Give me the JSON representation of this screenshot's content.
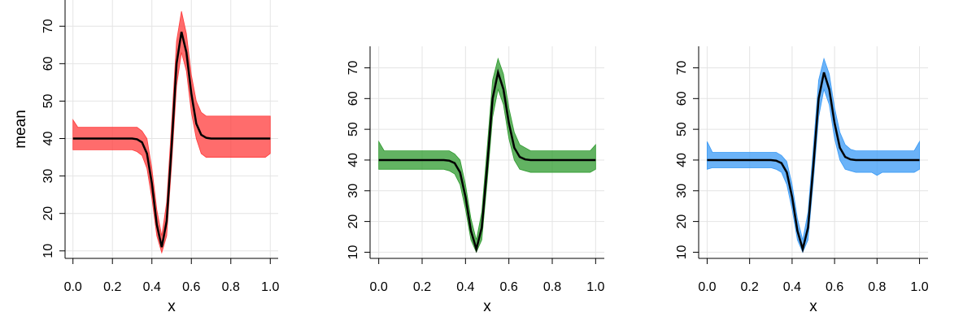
{
  "chart_data": [
    {
      "type": "line",
      "xlabel": "x",
      "ylabel": "mean",
      "x": [
        0,
        0.025,
        0.05,
        0.075,
        0.1,
        0.125,
        0.15,
        0.175,
        0.2,
        0.225,
        0.25,
        0.275,
        0.3,
        0.325,
        0.35,
        0.375,
        0.4,
        0.425,
        0.45,
        0.475,
        0.5,
        0.525,
        0.55,
        0.575,
        0.6,
        0.625,
        0.65,
        0.675,
        0.7,
        0.725,
        0.75,
        0.775,
        0.8,
        0.825,
        0.85,
        0.875,
        0.9,
        0.925,
        0.95,
        0.975,
        1
      ],
      "series": [
        {
          "color": "#000000",
          "values": [
            40,
            40,
            40,
            40,
            40,
            40,
            40,
            40,
            40,
            40,
            40,
            40,
            40,
            39.8,
            39,
            36,
            28,
            17,
            11,
            18,
            38,
            60,
            68.5,
            63,
            52,
            44,
            41,
            40.2,
            40,
            40,
            40,
            40,
            40,
            40,
            40,
            40,
            40,
            40,
            40,
            40,
            40
          ]
        }
      ],
      "band": {
        "color": "#ff3b3b",
        "upper": [
          45,
          43,
          43,
          43,
          43,
          43,
          43,
          43,
          43,
          43,
          43,
          43,
          43,
          43,
          42,
          40,
          32,
          21,
          14,
          23,
          44,
          66,
          74,
          68,
          57,
          50,
          47,
          46,
          46,
          46,
          46,
          46,
          46,
          46,
          46,
          46,
          46,
          46,
          46,
          46,
          46
        ],
        "lower": [
          37,
          37,
          37,
          37,
          37,
          37,
          37,
          37,
          37,
          37,
          37,
          37,
          37,
          36.5,
          35.5,
          32,
          24,
          14,
          9.5,
          14,
          33,
          54,
          63,
          58,
          47,
          40,
          36,
          35,
          35,
          35,
          35,
          35,
          35,
          35,
          35,
          35,
          35,
          35,
          35,
          35,
          36
        ]
      },
      "xlim": [
        -0.04,
        1.04
      ],
      "ylim": [
        8,
        77
      ],
      "xticks": [
        {
          "value": 0,
          "label": "0.0"
        },
        0.2,
        0.4,
        0.6,
        0.8,
        {
          "value": 1,
          "label": "1.0"
        }
      ],
      "yticks": [
        10,
        20,
        30,
        40,
        50,
        60,
        70
      ],
      "grid": true
    },
    {
      "type": "line",
      "xlabel": "x",
      "x": [
        0,
        0.025,
        0.05,
        0.075,
        0.1,
        0.125,
        0.15,
        0.175,
        0.2,
        0.225,
        0.25,
        0.275,
        0.3,
        0.325,
        0.35,
        0.375,
        0.4,
        0.425,
        0.45,
        0.475,
        0.5,
        0.525,
        0.55,
        0.575,
        0.6,
        0.625,
        0.65,
        0.675,
        0.7,
        0.725,
        0.75,
        0.775,
        0.8,
        0.825,
        0.85,
        0.875,
        0.9,
        0.925,
        0.95,
        0.975,
        1
      ],
      "series": [
        {
          "color": "#000000",
          "values": [
            40,
            40,
            40,
            40,
            40,
            40,
            40,
            40,
            40,
            40,
            40,
            40,
            40,
            39.8,
            39,
            36,
            28,
            17,
            11,
            18,
            38,
            60,
            68.5,
            63,
            52,
            44,
            41,
            40.2,
            40,
            40,
            40,
            40,
            40,
            40,
            40,
            40,
            40,
            40,
            40,
            40,
            40
          ]
        }
      ],
      "band": {
        "color": "#2e9a2e",
        "upper": [
          46,
          43,
          43,
          43,
          43,
          43,
          43,
          43,
          43,
          43,
          43,
          43,
          43,
          43,
          42,
          40,
          32,
          21,
          14,
          23,
          44,
          66,
          73,
          68,
          57,
          49,
          45,
          44,
          43,
          43,
          43,
          43,
          43,
          43,
          43,
          43,
          43,
          43,
          43,
          43,
          45
        ],
        "lower": [
          37,
          37,
          37,
          37,
          37,
          37,
          37,
          37,
          37,
          37,
          37,
          37,
          37,
          36.5,
          35.5,
          32,
          24,
          14,
          10,
          14,
          33,
          54,
          63,
          58,
          47,
          40,
          37,
          36.5,
          36,
          36,
          36,
          36,
          36,
          36,
          36,
          36,
          36,
          36,
          36,
          36,
          37
        ]
      },
      "xlim": [
        -0.04,
        1.04
      ],
      "ylim": [
        8,
        77
      ],
      "xticks": [
        {
          "value": 0,
          "label": "0.0"
        },
        0.2,
        0.4,
        0.6,
        0.8,
        {
          "value": 1,
          "label": "1.0"
        }
      ],
      "yticks": [
        10,
        20,
        30,
        40,
        50,
        60,
        70
      ],
      "grid": true
    },
    {
      "type": "line",
      "xlabel": "x",
      "x": [
        0,
        0.025,
        0.05,
        0.075,
        0.1,
        0.125,
        0.15,
        0.175,
        0.2,
        0.225,
        0.25,
        0.275,
        0.3,
        0.325,
        0.35,
        0.375,
        0.4,
        0.425,
        0.45,
        0.475,
        0.5,
        0.525,
        0.55,
        0.575,
        0.6,
        0.625,
        0.65,
        0.675,
        0.7,
        0.725,
        0.75,
        0.775,
        0.8,
        0.825,
        0.85,
        0.875,
        0.9,
        0.925,
        0.95,
        0.975,
        1
      ],
      "series": [
        {
          "color": "#000000",
          "values": [
            40,
            40,
            40,
            40,
            40,
            40,
            40,
            40,
            40,
            40,
            40,
            40,
            40,
            39.8,
            39,
            36,
            28,
            17,
            11,
            18,
            38,
            60,
            68.5,
            63,
            52,
            44,
            41,
            40.2,
            40,
            40,
            40,
            40,
            40,
            40,
            40,
            40,
            40,
            40,
            40,
            40,
            40
          ]
        }
      ],
      "band": {
        "color": "#3a9af5",
        "upper": [
          46,
          42.5,
          42.5,
          42.5,
          42.5,
          42.5,
          42.5,
          42.5,
          42.5,
          42.5,
          42.5,
          42.5,
          42.5,
          42.5,
          41.5,
          39.5,
          32,
          21,
          14,
          23,
          44,
          66,
          73,
          68,
          57,
          49,
          45,
          43.5,
          43,
          43,
          43,
          43,
          43,
          43,
          43,
          43,
          43,
          43,
          43,
          43,
          46
        ],
        "lower": [
          37,
          37.5,
          37.5,
          37.5,
          37.5,
          37.5,
          37.5,
          37.5,
          37.5,
          37.5,
          37.5,
          37.5,
          37.5,
          37,
          36,
          32,
          24,
          14,
          10,
          14,
          33,
          54,
          63,
          58,
          47,
          40,
          37,
          36.5,
          36,
          36,
          36,
          36,
          35,
          36,
          36,
          36,
          36,
          36,
          36,
          36,
          37
        ]
      },
      "xlim": [
        -0.04,
        1.04
      ],
      "ylim": [
        8,
        77
      ],
      "xticks": [
        {
          "value": 0,
          "label": "0.0"
        },
        0.2,
        0.4,
        0.6,
        0.8,
        {
          "value": 1,
          "label": "1.0"
        }
      ],
      "yticks": [
        10,
        20,
        30,
        40,
        50,
        60,
        70
      ],
      "grid": true
    }
  ]
}
